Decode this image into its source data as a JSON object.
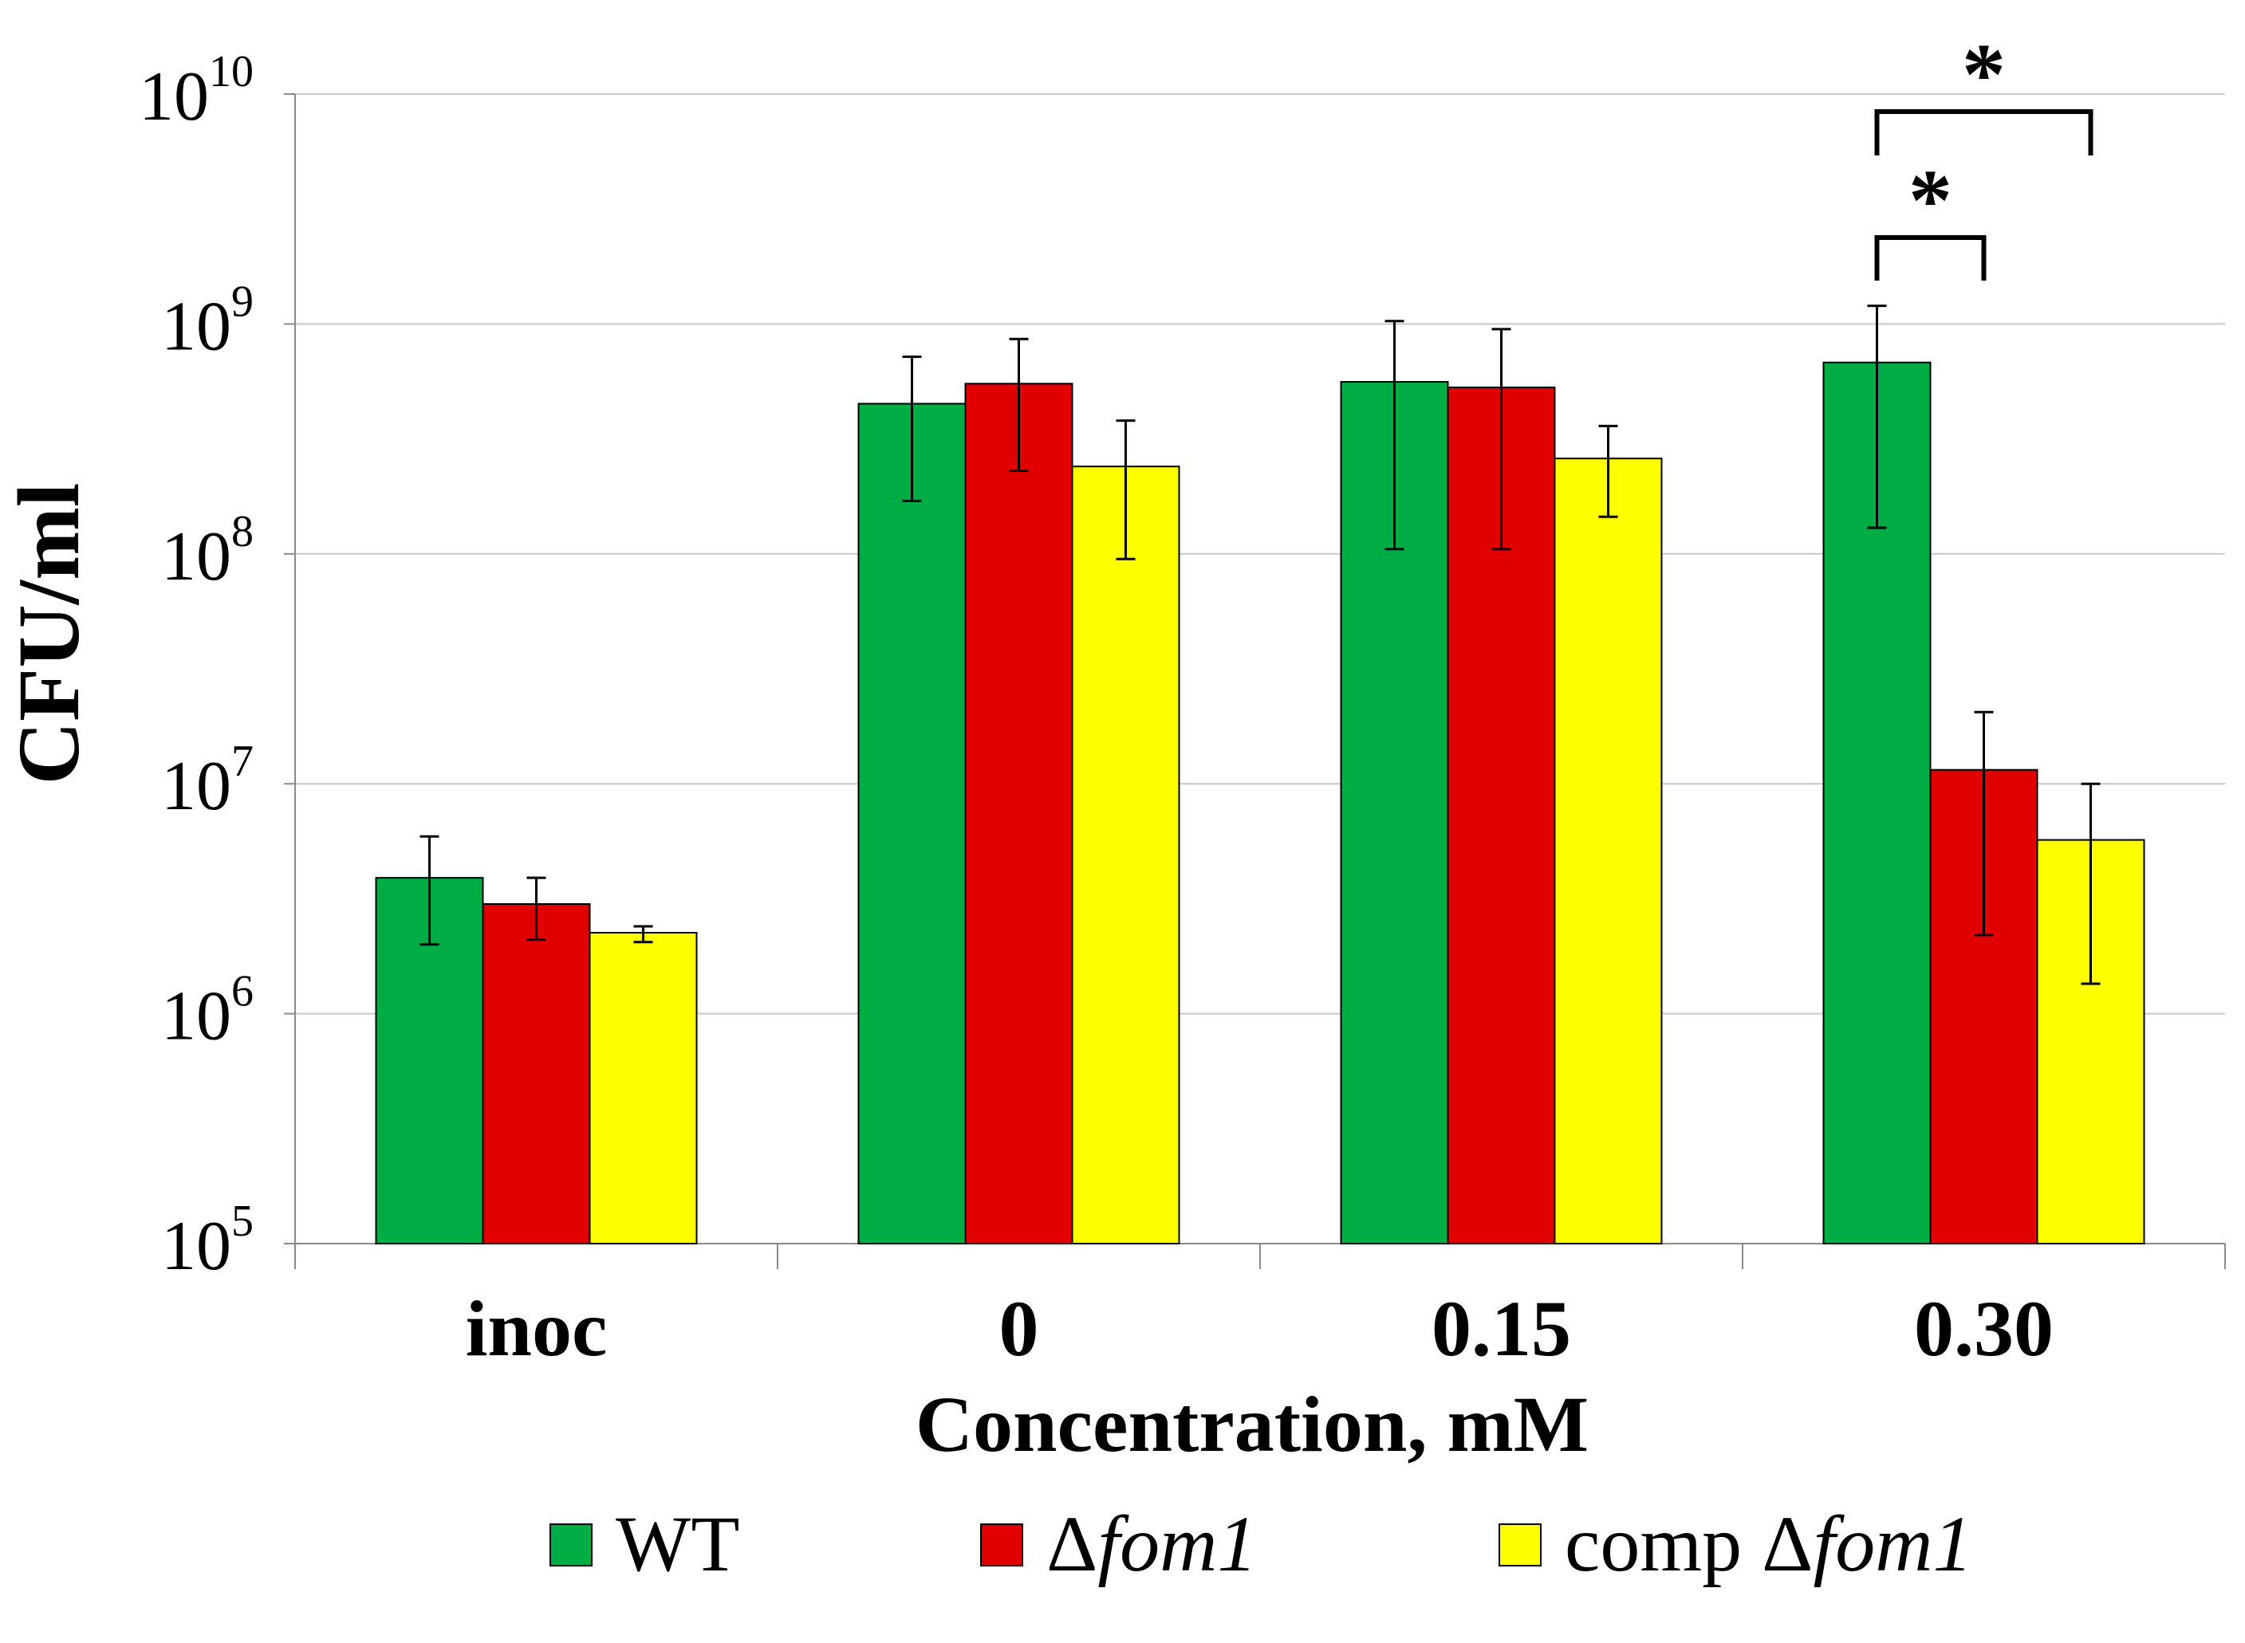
{
  "chart_data": {
    "type": "bar",
    "title": "",
    "xlabel": "Concentration, mM",
    "ylabel": "CFU/ml",
    "yscale": "log",
    "ylim": [
      100000,
      10000000000
    ],
    "y_ticks": [
      {
        "base": "10",
        "exp": "5",
        "value": 100000
      },
      {
        "base": "10",
        "exp": "6",
        "value": 1000000
      },
      {
        "base": "10",
        "exp": "7",
        "value": 10000000
      },
      {
        "base": "10",
        "exp": "8",
        "value": 100000000
      },
      {
        "base": "10",
        "exp": "9",
        "value": 1000000000
      },
      {
        "base": "10",
        "exp": "10",
        "value": 10000000000
      }
    ],
    "grid": true,
    "categories": [
      "inoc",
      "0",
      "0.15",
      "0.30"
    ],
    "series": [
      {
        "name": "WT",
        "symbol": "",
        "italic": "",
        "color": "#00ad45",
        "values": [
          3900000,
          450000000,
          560000000,
          680000000
        ],
        "err_low": [
          2000000,
          170000000,
          105000000,
          130000000
        ],
        "err_high": [
          5900000,
          720000000,
          1030000000,
          1200000000
        ]
      },
      {
        "name": "",
        "symbol": "Δ",
        "italic": "fom1",
        "color": "#e00000",
        "values": [
          3000000,
          550000000,
          530000000,
          11500000
        ],
        "err_low": [
          2100000,
          230000000,
          105000000,
          2200000
        ],
        "err_high": [
          3900000,
          860000000,
          950000000,
          20500000
        ]
      },
      {
        "name": "comp ",
        "symbol": "Δ",
        "italic": "fom1",
        "color": "#ffff00",
        "values": [
          2250000,
          240000000,
          260000000,
          5700000
        ],
        "err_low": [
          2050000,
          95000000,
          145000000,
          1350000
        ],
        "err_high": [
          2400000,
          380000000,
          360000000,
          10000000
        ]
      }
    ],
    "annotations": [
      {
        "text": "*",
        "category": "0.30",
        "from_series": 0,
        "to_series": 2,
        "level": "upper"
      },
      {
        "text": "*",
        "category": "0.30",
        "from_series": 0,
        "to_series": 1,
        "level": "lower"
      }
    ],
    "legend_position": "bottom"
  }
}
